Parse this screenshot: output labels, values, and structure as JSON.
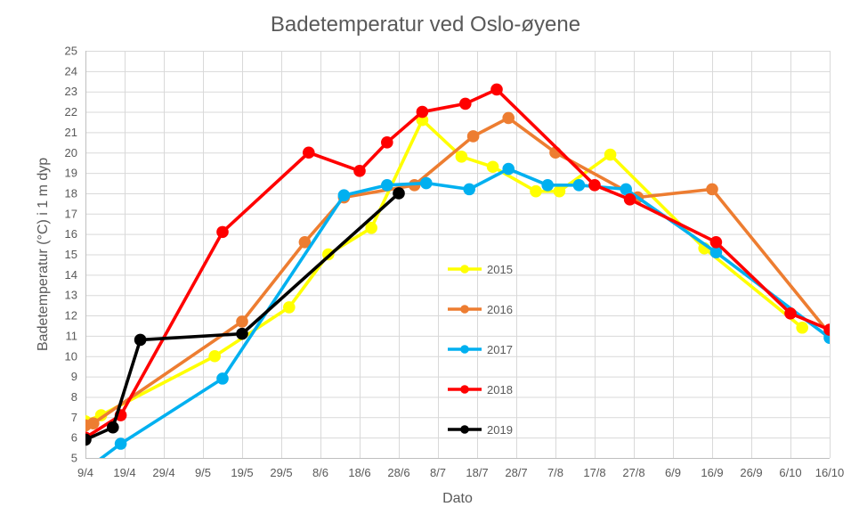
{
  "title": "Badetemperatur ved Oslo-øyene",
  "colors": {
    "background": "#FFFFFF",
    "gridline": "#D9D9D9",
    "axis_line": "#BFBFBF",
    "text": "#595959"
  },
  "chart_data": {
    "type": "line",
    "title": "Badetemperatur ved Oslo-øyene",
    "xlabel": "Dato",
    "ylabel": "Badetemperatur (°C) i 1 m dyp",
    "ylim": [
      5,
      25
    ],
    "y_tick_step": 1,
    "grid": true,
    "legend_position": "inside-center",
    "x_day_max": 190,
    "x_tick_days": [
      0,
      10,
      20,
      30,
      40,
      50,
      60,
      70,
      80,
      90,
      100,
      110,
      120,
      130,
      140,
      150,
      160,
      170,
      180,
      190
    ],
    "x_tick_labels": [
      "9/4",
      "19/4",
      "29/4",
      "9/5",
      "19/5",
      "29/5",
      "8/6",
      "18/6",
      "28/6",
      "8/7",
      "18/7",
      "28/7",
      "7/8",
      "17/8",
      "27/8",
      "6/9",
      "16/9",
      "26/9",
      "6/10",
      "16/10"
    ],
    "point_format": [
      "date",
      "day_offset_from_9/4",
      "temperature_C"
    ],
    "series": [
      {
        "name": "2015",
        "color": "#FFFF00",
        "points": [
          [
            "9/4",
            0,
            6.8
          ],
          [
            "13/4",
            4,
            7.1
          ],
          [
            "12/5",
            33,
            10.0
          ],
          [
            "31/5",
            52,
            12.4
          ],
          [
            "10/6",
            62,
            15.0
          ],
          [
            "21/6",
            73,
            16.3
          ],
          [
            "4/7",
            86,
            21.6
          ],
          [
            "14/7",
            96,
            19.8
          ],
          [
            "22/7",
            104,
            19.3
          ],
          [
            "2/8",
            115,
            18.1
          ],
          [
            "8/8",
            121,
            18.1
          ],
          [
            "21/8",
            134,
            19.9
          ],
          [
            "14/9",
            158,
            15.3
          ],
          [
            "9/10",
            183,
            11.4
          ]
        ]
      },
      {
        "name": "2016",
        "color": "#ED7D31",
        "points": [
          [
            "9/4",
            0,
            6.6
          ],
          [
            "11/4",
            2,
            6.7
          ],
          [
            "19/5",
            40,
            11.7
          ],
          [
            "4/6",
            56,
            15.6
          ],
          [
            "14/6",
            66,
            17.8
          ],
          [
            "2/7",
            84,
            18.4
          ],
          [
            "17/7",
            99,
            20.8
          ],
          [
            "26/7",
            108,
            21.7
          ],
          [
            "7/8",
            120,
            20.0
          ],
          [
            "28/8",
            141,
            17.8
          ],
          [
            "16/9",
            160,
            18.2
          ],
          [
            "16/10",
            190,
            11.1
          ]
        ]
      },
      {
        "name": "2017",
        "color": "#00B0F0",
        "points": [
          [
            "9/4",
            0,
            4.4
          ],
          [
            "18/4",
            9,
            5.7
          ],
          [
            "14/5",
            35,
            8.9
          ],
          [
            "14/6",
            66,
            17.9
          ],
          [
            "25/6",
            77,
            18.4
          ],
          [
            "5/7",
            87,
            18.5
          ],
          [
            "16/7",
            98,
            18.2
          ],
          [
            "26/7",
            108,
            19.2
          ],
          [
            "5/8",
            118,
            18.4
          ],
          [
            "13/8",
            126,
            18.4
          ],
          [
            "25/8",
            138,
            18.2
          ],
          [
            "17/9",
            161,
            15.1
          ],
          [
            "16/10",
            190,
            10.9
          ]
        ]
      },
      {
        "name": "2018",
        "color": "#FF0000",
        "points": [
          [
            "9/4",
            0,
            6.0
          ],
          [
            "18/4",
            9,
            7.1
          ],
          [
            "14/5",
            35,
            16.1
          ],
          [
            "5/6",
            57,
            20.0
          ],
          [
            "18/6",
            70,
            19.1
          ],
          [
            "25/6",
            77,
            20.5
          ],
          [
            "4/7",
            86,
            22.0
          ],
          [
            "15/7",
            97,
            22.4
          ],
          [
            "23/7",
            105,
            23.1
          ],
          [
            "17/8",
            130,
            18.4
          ],
          [
            "26/8",
            139,
            17.7
          ],
          [
            "17/9",
            161,
            15.6
          ],
          [
            "6/10",
            180,
            12.1
          ],
          [
            "16/10",
            190,
            11.3
          ]
        ]
      },
      {
        "name": "2019",
        "color": "#000000",
        "points": [
          [
            "9/4",
            0,
            5.9
          ],
          [
            "16/4",
            7,
            6.5
          ],
          [
            "23/4",
            14,
            10.8
          ],
          [
            "19/5",
            40,
            11.1
          ],
          [
            "28/6",
            80,
            18.0
          ]
        ]
      }
    ]
  }
}
